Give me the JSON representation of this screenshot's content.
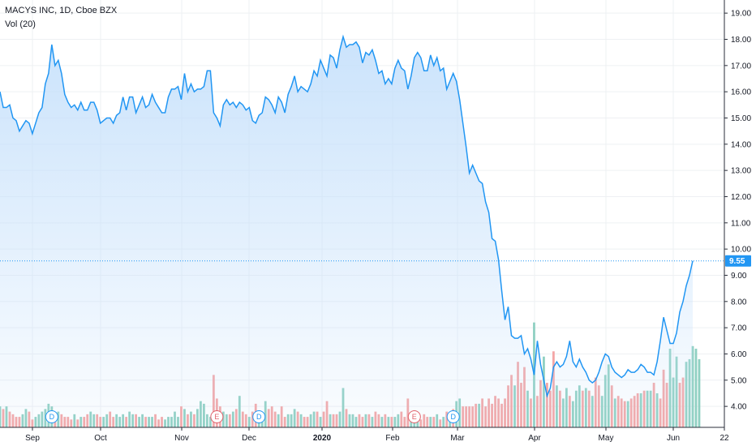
{
  "legend": {
    "symbol": "MACYS INC, 1D, Cboe BZX",
    "volume": "Vol (20)"
  },
  "colors": {
    "line": "#2196f3",
    "fill_top": "#c5e0fb",
    "vol_up": "#8fd0c2",
    "vol_down": "#f4a6a6",
    "grid": "#eef0f3",
    "axis": "#2a2e39",
    "last_price": "#2196f3",
    "event_div": "#2196f3",
    "event_earn": "#e0606a"
  },
  "last_price": "9.55",
  "chart_data": {
    "type": "area",
    "title": "MACYS INC, 1D, Cboe BZX",
    "ylim": [
      3.2,
      19.5
    ],
    "y_ticks": [
      "4.00",
      "5.00",
      "6.00",
      "7.00",
      "8.00",
      "9.00",
      "10.00",
      "11.00",
      "12.00",
      "13.00",
      "14.00",
      "15.00",
      "16.00",
      "17.00",
      "18.00",
      "19.00"
    ],
    "x_ticks": [
      "Sep",
      "Oct",
      "Nov",
      "Dec",
      "2020",
      "Feb",
      "Mar",
      "Apr",
      "May",
      "Jun",
      "22"
    ],
    "grid": true,
    "series": [
      {
        "values": [
          16.0,
          15.4,
          15.4,
          15.5,
          15.0,
          14.9,
          14.5,
          14.7,
          14.9,
          14.8,
          14.4,
          14.8,
          15.2,
          15.4,
          16.3,
          16.7,
          17.8,
          17.0,
          17.2,
          16.7,
          15.9,
          15.6,
          15.4,
          15.5,
          15.3,
          15.6,
          15.3,
          15.3,
          15.6,
          15.6,
          15.3,
          14.8,
          14.9,
          15.0,
          15.0,
          14.8,
          15.1,
          15.2,
          15.8,
          15.3,
          15.8,
          15.8,
          15.2,
          15.5,
          15.8,
          15.4,
          15.5,
          15.9,
          15.6,
          15.4,
          15.2,
          15.2,
          15.8,
          16.1,
          16.1,
          16.2,
          15.7,
          16.7,
          16.0,
          16.3,
          16.0,
          16.1,
          16.1,
          16.2,
          16.8,
          16.8,
          15.2,
          15.0,
          14.7,
          15.5,
          15.7,
          15.5,
          15.6,
          15.4,
          15.6,
          15.5,
          15.3,
          15.4,
          14.9,
          14.8,
          15.1,
          15.2,
          15.8,
          15.7,
          15.5,
          15.2,
          15.8,
          15.6,
          15.2,
          15.9,
          16.2,
          16.6,
          16.0,
          16.2,
          16.1,
          16.0,
          16.3,
          16.8,
          16.6,
          17.2,
          16.9,
          16.6,
          17.4,
          17.3,
          16.9,
          17.6,
          18.1,
          17.7,
          17.8,
          17.8,
          17.9,
          17.7,
          17.1,
          17.5,
          17.4,
          17.6,
          17.2,
          16.7,
          16.8,
          16.3,
          16.5,
          16.3,
          16.9,
          17.2,
          16.9,
          16.8,
          16.1,
          16.6,
          17.3,
          17.5,
          17.3,
          16.8,
          16.8,
          17.4,
          17.0,
          17.3,
          16.8,
          16.9,
          16.1,
          16.4,
          16.7,
          16.4,
          15.7,
          14.8,
          13.9,
          12.9,
          13.2,
          12.9,
          12.6,
          12.5,
          11.8,
          11.4,
          10.4,
          10.3,
          9.6,
          8.4,
          7.3,
          7.8,
          6.7,
          6.6,
          6.6,
          6.7,
          6.0,
          6.2,
          5.8,
          5.2,
          6.5,
          5.6,
          5.0,
          4.4,
          4.7,
          5.5,
          5.7,
          5.5,
          5.6,
          5.9,
          6.5,
          5.7,
          5.5,
          5.8,
          5.5,
          5.3,
          5.0,
          4.9,
          5.0,
          5.3,
          5.7,
          6.0,
          5.9,
          5.5,
          5.3,
          5.2,
          5.1,
          5.2,
          5.4,
          5.3,
          5.3,
          5.4,
          5.6,
          5.5,
          5.3,
          5.3,
          5.2,
          5.7,
          6.5,
          7.4,
          6.9,
          6.4,
          6.4,
          6.8,
          7.6,
          8.0,
          8.6,
          9.0,
          9.55
        ]
      }
    ],
    "volume": {
      "name": "Vol (20)",
      "values": [
        4.0,
        3.9,
        4.0,
        3.8,
        3.7,
        3.6,
        3.6,
        3.7,
        3.9,
        3.8,
        3.5,
        3.6,
        3.7,
        3.8,
        3.9,
        4.1,
        4.0,
        3.7,
        3.8,
        3.7,
        3.6,
        3.6,
        3.5,
        3.7,
        3.5,
        3.6,
        3.6,
        3.7,
        3.8,
        3.7,
        3.7,
        3.6,
        3.6,
        3.7,
        3.8,
        3.6,
        3.7,
        3.6,
        3.7,
        3.6,
        3.8,
        3.7,
        3.7,
        3.6,
        3.7,
        3.6,
        3.6,
        3.6,
        3.7,
        3.5,
        3.6,
        3.5,
        3.6,
        3.6,
        3.8,
        3.6,
        4.0,
        3.9,
        3.7,
        3.8,
        3.7,
        3.9,
        4.2,
        4.1,
        3.7,
        3.6,
        5.2,
        4.3,
        4.0,
        3.8,
        3.7,
        3.7,
        3.8,
        3.9,
        4.4,
        3.8,
        3.7,
        3.6,
        3.8,
        4.1,
        3.7,
        3.6,
        4.2,
        3.9,
        4.0,
        3.8,
        3.7,
        4.0,
        3.6,
        3.7,
        3.7,
        3.9,
        3.8,
        3.7,
        3.6,
        3.6,
        3.7,
        3.8,
        3.8,
        3.6,
        3.8,
        4.2,
        3.7,
        3.7,
        3.7,
        3.8,
        4.7,
        3.9,
        3.7,
        3.7,
        3.6,
        3.7,
        3.6,
        3.7,
        3.7,
        3.6,
        3.8,
        3.7,
        3.6,
        3.7,
        3.6,
        3.6,
        3.6,
        3.7,
        3.8,
        3.6,
        4.3,
        3.6,
        3.7,
        3.6,
        3.5,
        3.7,
        3.6,
        3.6,
        3.6,
        3.7,
        3.5,
        3.6,
        3.8,
        3.7,
        3.9,
        4.2,
        4.3,
        4.0,
        4.0,
        4.0,
        4.0,
        4.1,
        4.1,
        4.3,
        4.0,
        4.3,
        4.1,
        4.4,
        4.3,
        4.1,
        4.3,
        4.8,
        5.2,
        4.8,
        5.7,
        4.9,
        5.5,
        4.6,
        4.3,
        7.2,
        4.4,
        5.0,
        5.9,
        4.9,
        4.6,
        6.1,
        4.8,
        4.6,
        4.3,
        4.7,
        4.4,
        4.2,
        4.6,
        4.8,
        4.6,
        4.7,
        4.6,
        4.4,
        5.1,
        4.8,
        4.4,
        5.2,
        5.6,
        4.8,
        4.3,
        4.4,
        4.3,
        4.2,
        4.2,
        4.3,
        4.4,
        4.5,
        4.5,
        4.6,
        4.6,
        4.6,
        4.9,
        4.5,
        4.3,
        5.4,
        4.9,
        6.2,
        5.1,
        5.9,
        4.9,
        5.1,
        5.7,
        5.8,
        6.3,
        6.2,
        5.8
      ],
      "up": [
        true,
        false,
        true,
        false,
        false,
        false,
        false,
        true,
        true,
        false,
        false,
        true,
        true,
        true,
        true,
        true,
        true,
        false,
        true,
        false,
        false,
        false,
        false,
        true,
        false,
        true,
        false,
        false,
        true,
        true,
        false,
        false,
        true,
        true,
        false,
        false,
        true,
        true,
        true,
        false,
        true,
        true,
        false,
        true,
        true,
        false,
        true,
        true,
        false,
        false,
        false,
        true,
        true,
        true,
        true,
        true,
        false,
        true,
        false,
        true,
        false,
        true,
        true,
        true,
        true,
        true,
        false,
        false,
        false,
        true,
        true,
        false,
        true,
        false,
        true,
        false,
        false,
        true,
        false,
        false,
        true,
        true,
        true,
        false,
        false,
        false,
        true,
        false,
        false,
        true,
        true,
        true,
        false,
        true,
        false,
        false,
        true,
        true,
        false,
        true,
        false,
        false,
        true,
        false,
        false,
        true,
        true,
        false,
        true,
        true,
        true,
        false,
        false,
        true,
        false,
        true,
        false,
        false,
        true,
        false,
        true,
        false,
        true,
        true,
        false,
        false,
        false,
        true,
        true,
        true,
        false,
        false,
        false,
        true,
        false,
        true,
        false,
        true,
        false,
        true,
        false,
        true,
        true,
        false,
        false,
        false,
        false,
        false,
        true,
        false,
        false,
        false,
        false,
        false,
        false,
        false,
        false,
        false,
        false,
        true,
        false,
        false,
        false,
        true,
        false,
        true,
        false,
        false,
        true,
        false,
        false,
        false,
        true,
        false,
        true,
        true,
        false,
        true,
        true,
        true,
        false,
        true,
        false,
        true,
        false,
        false,
        true,
        true,
        true,
        false,
        true,
        false,
        false,
        false,
        true,
        false,
        false,
        false,
        true,
        false,
        true,
        true,
        false,
        true,
        false,
        false,
        false,
        true,
        true,
        true,
        false,
        false,
        true,
        true,
        true,
        true,
        true,
        true
      ]
    },
    "events": [
      {
        "type": "D",
        "index": 16
      },
      {
        "type": "E",
        "index": 67
      },
      {
        "type": "D",
        "index": 80
      },
      {
        "type": "E",
        "index": 128
      },
      {
        "type": "D",
        "index": 140
      }
    ]
  }
}
